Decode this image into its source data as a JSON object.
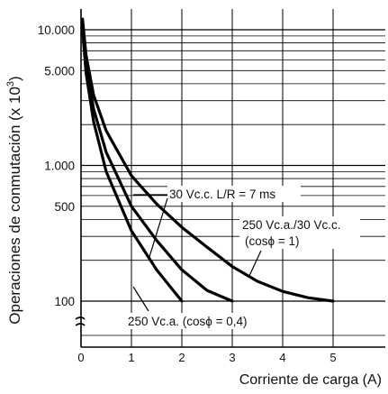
{
  "chart_data": {
    "type": "line",
    "xlabel": "Corriente de carga (A)",
    "ylabel": "Operaciones de conmutación (x 10",
    "ylabel_exponent": "3",
    "y_scale": "log",
    "xlim": [
      0,
      6
    ],
    "ylim": [
      70,
      13000
    ],
    "grid": true,
    "x_ticks": [
      {
        "v": 0,
        "label": "0"
      },
      {
        "v": 1,
        "label": "1"
      },
      {
        "v": 2,
        "label": "2"
      },
      {
        "v": 3,
        "label": "3"
      },
      {
        "v": 4,
        "label": "4"
      },
      {
        "v": 5,
        "label": "5"
      }
    ],
    "y_ticks": [
      {
        "v": 100,
        "label": "100"
      },
      {
        "v": 500,
        "label": "500"
      },
      {
        "v": 1000,
        "label": "1.000"
      },
      {
        "v": 5000,
        "label": "5.000"
      },
      {
        "v": 10000,
        "label": "10.000"
      }
    ],
    "series": [
      {
        "name": "250 Vc.a./30 Vc.c. (cosϕ = 1)",
        "x": [
          0.03,
          0.1,
          0.25,
          0.5,
          1.0,
          1.5,
          2.0,
          2.5,
          3.0,
          3.5,
          4.0,
          4.5,
          5.0
        ],
        "y": [
          12000,
          6500,
          3300,
          1800,
          840,
          520,
          350,
          250,
          180,
          140,
          118,
          106,
          100
        ]
      },
      {
        "name": "30 Vc.c. L/R = 7 ms",
        "x": [
          0.03,
          0.1,
          0.25,
          0.5,
          1.0,
          1.5,
          2.0,
          2.5,
          3.0
        ],
        "y": [
          11000,
          5500,
          2600,
          1250,
          500,
          280,
          170,
          120,
          100
        ]
      },
      {
        "name": "250 Vc.a. (cosϕ = 0,4)",
        "x": [
          0.03,
          0.1,
          0.25,
          0.5,
          1.0,
          1.5,
          2.0
        ],
        "y": [
          10000,
          4800,
          2100,
          900,
          330,
          170,
          100
        ]
      }
    ],
    "annotations": [
      {
        "text": "30 Vc.c. L/R = 7 ms",
        "series": 1
      },
      {
        "text": "250 Vc.a./30 Vc.c.",
        "series": 0
      },
      {
        "text": "(cosϕ = 1)",
        "series": 0
      },
      {
        "text": "250 Vc.a. (cosϕ = 0,4)",
        "series": 2
      }
    ]
  }
}
